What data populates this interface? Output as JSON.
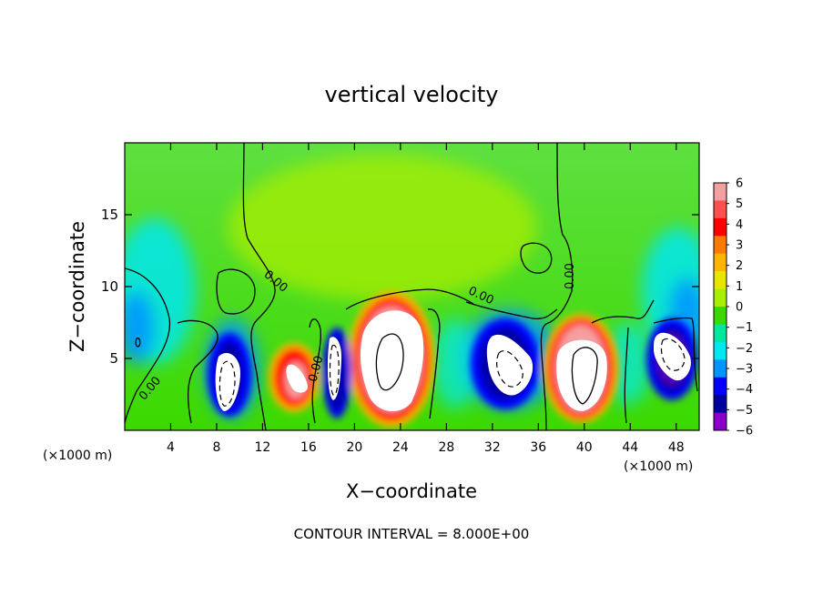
{
  "chart_data": {
    "type": "heatmap",
    "title": "vertical velocity",
    "xlabel": "X−coordinate",
    "ylabel": "Z−coordinate",
    "x_unit_label_left": "(×1000 m)",
    "x_unit_label_right": "(×1000 m)",
    "xlim": [
      0,
      50
    ],
    "ylim": [
      0,
      20
    ],
    "x_ticks": [
      4,
      8,
      12,
      16,
      20,
      24,
      28,
      32,
      36,
      40,
      44,
      48
    ],
    "y_ticks": [
      5,
      10,
      15
    ],
    "colorbar": {
      "levels": [
        6,
        5,
        4,
        3,
        2,
        1,
        0,
        -1,
        -2,
        -3,
        -4,
        -5,
        -6
      ],
      "tick_labels": [
        "6",
        "5",
        "4",
        "3",
        "2",
        "1",
        "0",
        "−1",
        "−2",
        "−3",
        "−4",
        "−5",
        "−6"
      ],
      "colors": [
        "#f4a0a0",
        "#ff5050",
        "#ff0000",
        "#ff7a00",
        "#ffb400",
        "#e6e600",
        "#a8ee00",
        "#3cd900",
        "#00e8a0",
        "#00e8f0",
        "#0096ff",
        "#0000ff",
        "#0000a0",
        "#8800cc"
      ]
    },
    "contour_labels": [
      "0.00",
      "0.00",
      "0.00",
      "0.00",
      "0.00",
      "0.00"
    ],
    "cells": [
      {
        "x": 9.5,
        "z": 3.5,
        "w": -8
      },
      {
        "x": 14.8,
        "z": 3.2,
        "w": 8
      },
      {
        "x": 18.5,
        "z": 4.5,
        "w": -7
      },
      {
        "x": 22.5,
        "z": 5.0,
        "w": 10
      },
      {
        "x": 33.0,
        "z": 4.5,
        "w": -7
      },
      {
        "x": 39.0,
        "z": 4.0,
        "w": 10
      },
      {
        "x": 47.5,
        "z": 4.5,
        "w": -7
      },
      {
        "x": 22.0,
        "z": 13.0,
        "w": 1.5
      },
      {
        "x": 1.0,
        "z": 9.0,
        "w": -2.5
      },
      {
        "x": 49.0,
        "z": 9.0,
        "w": -2.5
      }
    ]
  },
  "footer": {
    "contour_interval": "CONTOUR INTERVAL = 8.000E+00"
  }
}
